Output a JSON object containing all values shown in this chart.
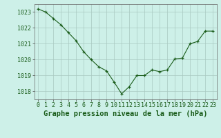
{
  "x": [
    0,
    1,
    2,
    3,
    4,
    5,
    6,
    7,
    8,
    9,
    10,
    11,
    12,
    13,
    14,
    15,
    16,
    17,
    18,
    19,
    20,
    21,
    22,
    23
  ],
  "y": [
    1023.2,
    1023.0,
    1022.6,
    1022.2,
    1021.7,
    1021.2,
    1020.5,
    1020.0,
    1019.55,
    1019.3,
    1018.6,
    1017.85,
    1018.3,
    1019.0,
    1019.0,
    1019.35,
    1019.25,
    1019.35,
    1020.05,
    1020.1,
    1021.0,
    1021.15,
    1021.8,
    1021.8
  ],
  "bg_color": "#cdf0e8",
  "line_color": "#1a5c1a",
  "marker_color": "#1a5c1a",
  "grid_color": "#a8c8c0",
  "xlabel": "Graphe pression niveau de la mer (hPa)",
  "ylim": [
    1017.5,
    1023.5
  ],
  "yticks": [
    1018,
    1019,
    1020,
    1021,
    1022,
    1023
  ],
  "xticks": [
    0,
    1,
    2,
    3,
    4,
    5,
    6,
    7,
    8,
    9,
    10,
    11,
    12,
    13,
    14,
    15,
    16,
    17,
    18,
    19,
    20,
    21,
    22,
    23
  ],
  "title_fontsize": 7.5,
  "tick_fontsize": 6.0
}
